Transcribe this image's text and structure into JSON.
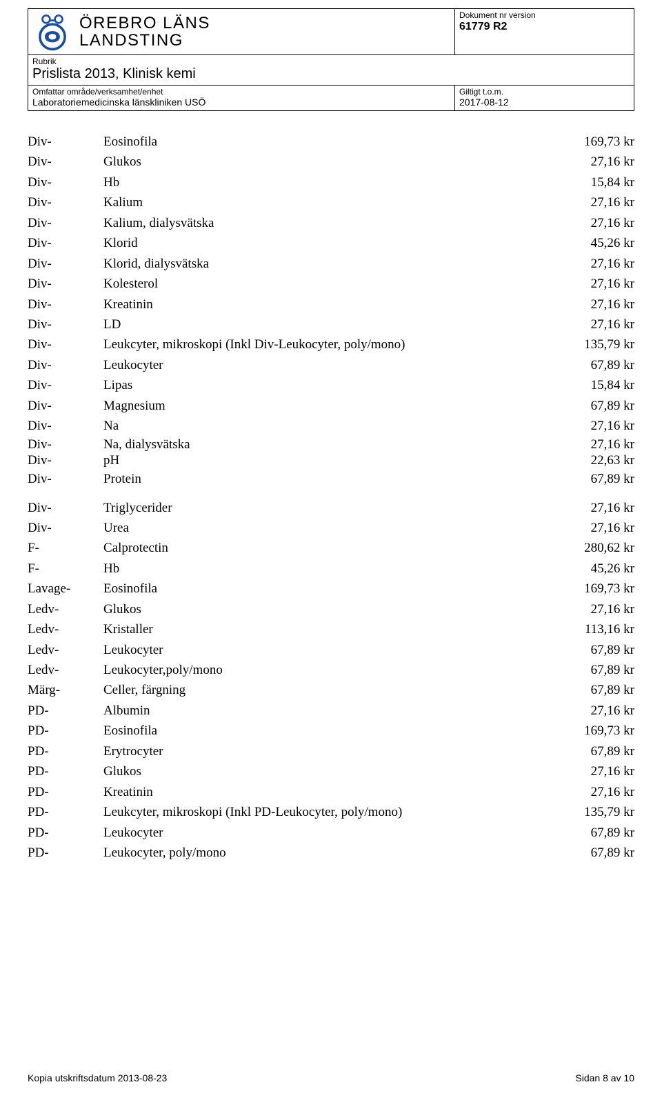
{
  "header": {
    "org_line1": "ÖREBRO LÄNS",
    "org_line2": "LANDSTING",
    "doc_label": "Dokument nr version",
    "doc_number": "61779  R2",
    "rubrik_label": "Rubrik",
    "rubrik_title": "Prislista 2013, Klinisk kemi",
    "omf_label": "Omfattar område/verksamhet/enhet",
    "omf_value": "Laboratoriemedicinska länskliniken USÖ",
    "gilt_label": "Giltigt t.o.m.",
    "gilt_value": "2017-08-12"
  },
  "rows": [
    {
      "c1": "Div-",
      "c2": "Eosinofila",
      "c3": "169,73 kr"
    },
    {
      "c1": "Div-",
      "c2": "Glukos",
      "c3": "27,16 kr"
    },
    {
      "c1": "Div-",
      "c2": "Hb",
      "c3": "15,84 kr"
    },
    {
      "c1": "Div-",
      "c2": "Kalium",
      "c3": "27,16 kr"
    },
    {
      "c1": "Div-",
      "c2": "Kalium, dialysvätska",
      "c3": "27,16 kr"
    },
    {
      "c1": "Div-",
      "c2": "Klorid",
      "c3": "45,26 kr"
    },
    {
      "c1": "Div-",
      "c2": "Klorid, dialysvätska",
      "c3": "27,16 kr"
    },
    {
      "c1": "Div-",
      "c2": "Kolesterol",
      "c3": "27,16 kr"
    },
    {
      "c1": "Div-",
      "c2": "Kreatinin",
      "c3": "27,16 kr"
    },
    {
      "c1": "Div-",
      "c2": "LD",
      "c3": "27,16 kr"
    },
    {
      "c1": "Div-",
      "c2": "Leukcyter, mikroskopi (Inkl Div-Leukocyter, poly/mono)",
      "c3": "135,79 kr"
    },
    {
      "c1": "Div-",
      "c2": "Leukocyter",
      "c3": "67,89 kr"
    },
    {
      "c1": "Div-",
      "c2": "Lipas",
      "c3": "15,84 kr"
    },
    {
      "c1": "Div-",
      "c2": "Magnesium",
      "c3": "67,89 kr"
    },
    {
      "c1": "Div-",
      "c2": "Na",
      "c3": "27,16 kr"
    },
    {
      "c1": "Div-",
      "c2": "Na, dialysvätska",
      "c3": "27,16 kr",
      "tight": true
    },
    {
      "c1": "Div-",
      "c2": "pH",
      "c3": "22,63 kr",
      "tight": true
    },
    {
      "c1": "Div-",
      "c2": "Protein",
      "c3": "67,89 kr"
    },
    {
      "gap": true
    },
    {
      "c1": "Div-",
      "c2": "Triglycerider",
      "c3": "27,16 kr"
    },
    {
      "c1": "Div-",
      "c2": "Urea",
      "c3": "27,16 kr"
    },
    {
      "c1": "F-",
      "c2": "Calprotectin",
      "c3": "280,62 kr"
    },
    {
      "c1": "F-",
      "c2": "Hb",
      "c3": "45,26 kr"
    },
    {
      "c1": "Lavage-",
      "c2": "Eosinofila",
      "c3": "169,73 kr"
    },
    {
      "c1": "Ledv-",
      "c2": "Glukos",
      "c3": "27,16 kr"
    },
    {
      "c1": "Ledv-",
      "c2": "Kristaller",
      "c3": "113,16 kr"
    },
    {
      "c1": "Ledv-",
      "c2": "Leukocyter",
      "c3": "67,89 kr"
    },
    {
      "c1": "Ledv-",
      "c2": "Leukocyter,poly/mono",
      "c3": "67,89 kr"
    },
    {
      "c1": "Märg-",
      "c2": "Celler, färgning",
      "c3": "67,89 kr"
    },
    {
      "c1": "PD-",
      "c2": "Albumin",
      "c3": "27,16 kr"
    },
    {
      "c1": "PD-",
      "c2": "Eosinofila",
      "c3": "169,73 kr"
    },
    {
      "c1": "PD-",
      "c2": "Erytrocyter",
      "c3": "67,89 kr"
    },
    {
      "c1": "PD-",
      "c2": "Glukos",
      "c3": "27,16 kr"
    },
    {
      "c1": "PD-",
      "c2": "Kreatinin",
      "c3": "27,16 kr"
    },
    {
      "c1": "PD-",
      "c2": "Leukcyter, mikroskopi (Inkl PD-Leukocyter, poly/mono)",
      "c3": "135,79 kr"
    },
    {
      "c1": "PD-",
      "c2": "Leukocyter",
      "c3": "67,89 kr"
    },
    {
      "c1": "PD-",
      "c2": "Leukocyter, poly/mono",
      "c3": "67,89 kr"
    }
  ],
  "footer": {
    "left": "Kopia utskriftsdatum 2013-08-23",
    "right": "Sidan 8 av 10"
  },
  "colors": {
    "logo": "#1b4f9c",
    "text": "#000000",
    "border": "#000000",
    "background": "#ffffff"
  }
}
